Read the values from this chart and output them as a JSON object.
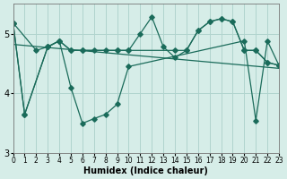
{
  "xlabel": "Humidex (Indice chaleur)",
  "bg_color": "#d6ede8",
  "grid_color": "#b0d4ce",
  "line_color": "#1a6b5a",
  "line1_x": [
    0,
    1,
    3,
    4,
    5,
    6,
    9,
    10,
    14,
    15,
    16,
    17,
    18,
    19,
    20,
    21,
    22,
    23
  ],
  "line1_y": [
    5.18,
    3.65,
    4.78,
    4.88,
    4.72,
    4.72,
    4.72,
    4.72,
    4.72,
    4.72,
    5.05,
    5.2,
    5.25,
    5.2,
    4.72,
    4.72,
    4.52,
    4.47
  ],
  "line2_x": [
    0,
    2,
    3,
    4,
    5,
    6,
    7,
    8,
    9,
    10,
    11,
    12,
    13,
    14,
    15,
    16,
    17,
    18,
    19,
    20,
    21,
    22,
    23
  ],
  "line2_y": [
    5.18,
    4.72,
    4.78,
    4.88,
    4.72,
    4.72,
    4.72,
    4.72,
    4.72,
    4.72,
    5.0,
    5.28,
    4.78,
    4.6,
    4.72,
    5.05,
    5.2,
    5.25,
    5.2,
    4.72,
    4.72,
    4.52,
    4.47
  ],
  "line3_x": [
    0,
    1,
    3,
    4,
    5,
    6,
    7,
    8,
    9,
    10,
    20,
    21,
    22,
    23
  ],
  "line3_y": [
    5.18,
    3.65,
    4.78,
    4.88,
    4.1,
    3.5,
    3.58,
    3.65,
    3.82,
    4.45,
    4.88,
    3.55,
    4.88,
    4.47
  ],
  "trend_x": [
    0,
    23
  ],
  "trend_y": [
    4.82,
    4.42
  ],
  "xlim": [
    0,
    23
  ],
  "ylim": [
    3.0,
    5.5
  ],
  "yticks": [
    3,
    4,
    5
  ],
  "xtick_fontsize": 5.5,
  "ytick_fontsize": 7,
  "xlabel_fontsize": 7
}
